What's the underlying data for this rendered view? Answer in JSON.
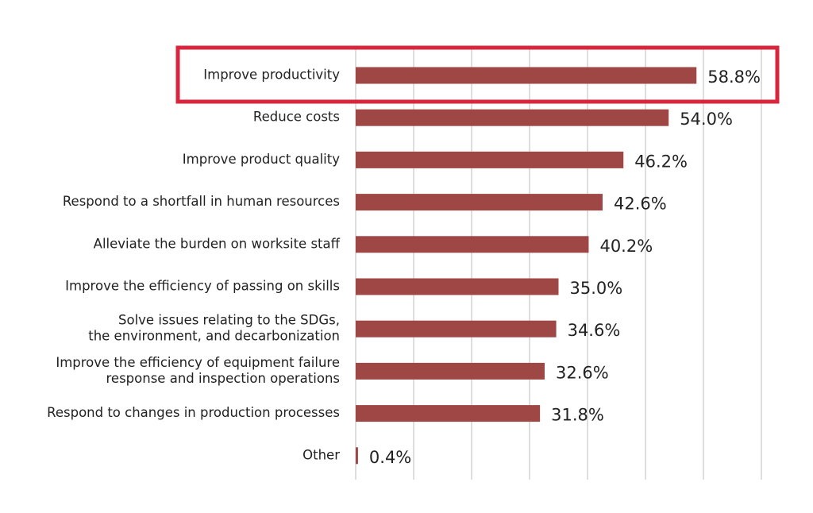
{
  "chart_data": {
    "type": "bar",
    "orientation": "horizontal",
    "categories": [
      [
        "Improve productivity"
      ],
      [
        "Reduce costs"
      ],
      [
        "Improve product quality"
      ],
      [
        "Respond to a shortfall in human resources"
      ],
      [
        "Alleviate the burden on worksite staff"
      ],
      [
        "Improve the efficiency of passing on skills"
      ],
      [
        "Solve issues relating to the SDGs,",
        "the environment, and decarbonization"
      ],
      [
        "Improve the efficiency of equipment failure",
        "response and inspection operations"
      ],
      [
        "Respond to changes in production processes"
      ],
      [
        "Other"
      ]
    ],
    "values": [
      58.8,
      54.0,
      46.2,
      42.6,
      40.2,
      35.0,
      34.6,
      32.6,
      31.8,
      0.4
    ],
    "value_labels": [
      "58.8%",
      "54.0%",
      "46.2%",
      "42.6%",
      "40.2%",
      "35.0%",
      "34.6%",
      "32.6%",
      "31.8%",
      "0.4%"
    ],
    "xlim": [
      0,
      70
    ],
    "grid": true,
    "bar_color": "#9e4744",
    "highlight_color": "#d7263d",
    "highlighted_category_index": 0
  }
}
